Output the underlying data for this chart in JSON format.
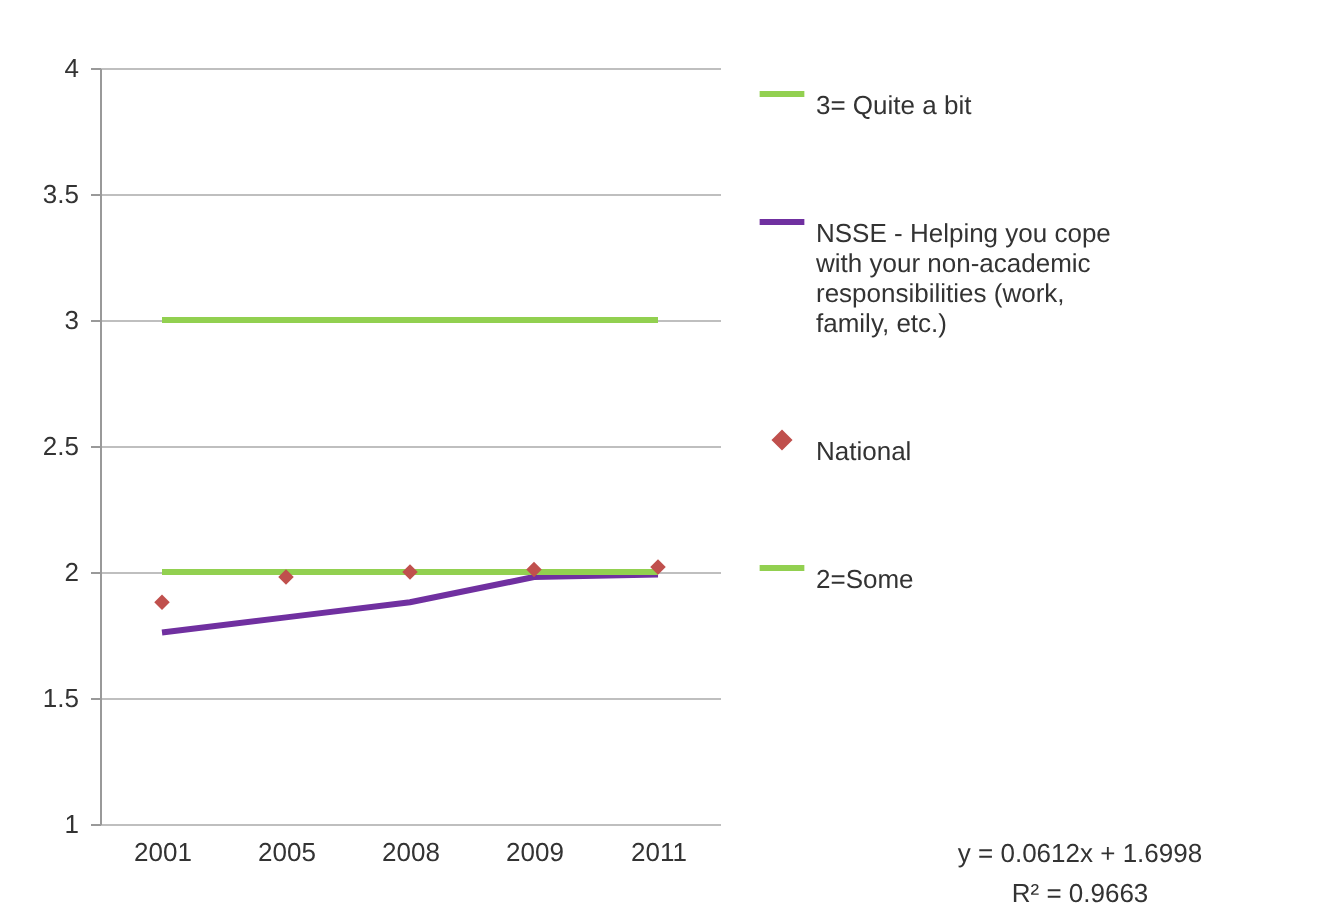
{
  "chart_data": {
    "type": "line",
    "categories": [
      "2001",
      "2005",
      "2008",
      "2009",
      "2011"
    ],
    "ylim": [
      1,
      4
    ],
    "yticks": [
      1,
      1.5,
      2,
      2.5,
      3,
      3.5,
      4
    ],
    "grid": "y",
    "legend": "right",
    "line_style": "solid",
    "series": [
      {
        "name": "3= Quite a bit",
        "color": "#92d050",
        "values": [
          3,
          3,
          3,
          3,
          3
        ]
      },
      {
        "name": "NSSE - Helping you cope with your non-academic responsibilities (work, family, etc.)",
        "color": "#7030a0",
        "values": [
          1.76,
          1.82,
          1.88,
          1.98,
          1.99
        ]
      },
      {
        "name": "National",
        "type": "scatter",
        "marker": "diamond",
        "color": "#c0504d",
        "values": [
          1.88,
          1.98,
          2.0,
          2.01,
          2.02
        ]
      },
      {
        "name": "2=Some",
        "color": "#92d050",
        "values": [
          2,
          2,
          2,
          2,
          2
        ]
      }
    ],
    "annotations": [
      "y = 0.0612x + 1.6998",
      "R² = 0.9663"
    ]
  }
}
